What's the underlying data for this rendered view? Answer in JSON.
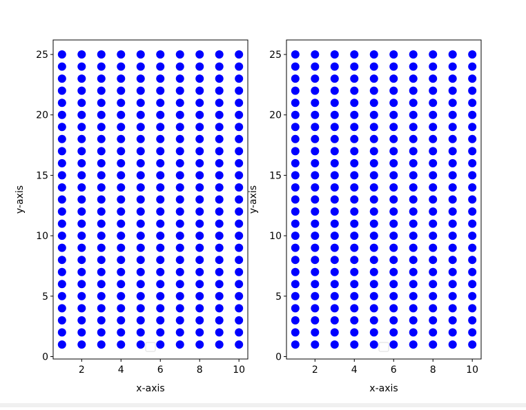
{
  "chart_data": [
    {
      "type": "scatter",
      "xlabel": "x-axis",
      "ylabel": "y-axis",
      "color": "#0000ff",
      "xlim": [
        0.55,
        10.45
      ],
      "ylim": [
        -0.2,
        26.2
      ],
      "xticks": [
        2,
        4,
        6,
        8,
        10
      ],
      "yticks": [
        0,
        5,
        10,
        15,
        20,
        25
      ],
      "x": [
        1,
        1,
        1,
        1,
        1,
        1,
        1,
        1,
        1,
        1,
        1,
        1,
        1,
        1,
        1,
        1,
        1,
        1,
        1,
        1,
        1,
        1,
        1,
        1,
        1,
        2,
        2,
        2,
        2,
        2,
        2,
        2,
        2,
        2,
        2,
        2,
        2,
        2,
        2,
        2,
        2,
        2,
        2,
        2,
        2,
        2,
        2,
        2,
        2,
        2,
        3,
        3,
        3,
        3,
        3,
        3,
        3,
        3,
        3,
        3,
        3,
        3,
        3,
        3,
        3,
        3,
        3,
        3,
        3,
        3,
        3,
        3,
        3,
        3,
        3,
        4,
        4,
        4,
        4,
        4,
        4,
        4,
        4,
        4,
        4,
        4,
        4,
        4,
        4,
        4,
        4,
        4,
        4,
        4,
        4,
        4,
        4,
        4,
        4,
        4,
        5,
        5,
        5,
        5,
        5,
        5,
        5,
        5,
        5,
        5,
        5,
        5,
        5,
        5,
        5,
        5,
        5,
        5,
        5,
        5,
        5,
        5,
        5,
        5,
        5,
        6,
        6,
        6,
        6,
        6,
        6,
        6,
        6,
        6,
        6,
        6,
        6,
        6,
        6,
        6,
        6,
        6,
        6,
        6,
        6,
        6,
        6,
        6,
        6,
        6,
        7,
        7,
        7,
        7,
        7,
        7,
        7,
        7,
        7,
        7,
        7,
        7,
        7,
        7,
        7,
        7,
        7,
        7,
        7,
        7,
        7,
        7,
        7,
        7,
        7,
        8,
        8,
        8,
        8,
        8,
        8,
        8,
        8,
        8,
        8,
        8,
        8,
        8,
        8,
        8,
        8,
        8,
        8,
        8,
        8,
        8,
        8,
        8,
        8,
        8,
        9,
        9,
        9,
        9,
        9,
        9,
        9,
        9,
        9,
        9,
        9,
        9,
        9,
        9,
        9,
        9,
        9,
        9,
        9,
        9,
        9,
        9,
        9,
        9,
        9,
        10,
        10,
        10,
        10,
        10,
        10,
        10,
        10,
        10,
        10,
        10,
        10,
        10,
        10,
        10,
        10,
        10,
        10,
        10,
        10,
        10,
        10,
        10,
        10,
        10
      ],
      "y": [
        1,
        2,
        3,
        4,
        5,
        6,
        7,
        8,
        9,
        10,
        11,
        12,
        13,
        14,
        15,
        16,
        17,
        18,
        19,
        20,
        21,
        22,
        23,
        24,
        25,
        1,
        2,
        3,
        4,
        5,
        6,
        7,
        8,
        9,
        10,
        11,
        12,
        13,
        14,
        15,
        16,
        17,
        18,
        19,
        20,
        21,
        22,
        23,
        24,
        25,
        1,
        2,
        3,
        4,
        5,
        6,
        7,
        8,
        9,
        10,
        11,
        12,
        13,
        14,
        15,
        16,
        17,
        18,
        19,
        20,
        21,
        22,
        23,
        24,
        25,
        1,
        2,
        3,
        4,
        5,
        6,
        7,
        8,
        9,
        10,
        11,
        12,
        13,
        14,
        15,
        16,
        17,
        18,
        19,
        20,
        21,
        22,
        23,
        24,
        25,
        1,
        2,
        3,
        4,
        5,
        6,
        7,
        8,
        9,
        10,
        11,
        12,
        13,
        14,
        15,
        16,
        17,
        18,
        19,
        20,
        21,
        22,
        23,
        24,
        25,
        1,
        2,
        3,
        4,
        5,
        6,
        7,
        8,
        9,
        10,
        11,
        12,
        13,
        14,
        15,
        16,
        17,
        18,
        19,
        20,
        21,
        22,
        23,
        24,
        25,
        1,
        2,
        3,
        4,
        5,
        6,
        7,
        8,
        9,
        10,
        11,
        12,
        13,
        14,
        15,
        16,
        17,
        18,
        19,
        20,
        21,
        22,
        23,
        24,
        25,
        1,
        2,
        3,
        4,
        5,
        6,
        7,
        8,
        9,
        10,
        11,
        12,
        13,
        14,
        15,
        16,
        17,
        18,
        19,
        20,
        21,
        22,
        23,
        24,
        25,
        1,
        2,
        3,
        4,
        5,
        6,
        7,
        8,
        9,
        10,
        11,
        12,
        13,
        14,
        15,
        16,
        17,
        18,
        19,
        20,
        21,
        22,
        23,
        24,
        25,
        1,
        2,
        3,
        4,
        5,
        6,
        7,
        8,
        9,
        10,
        11,
        12,
        13,
        14,
        15,
        16,
        17,
        18,
        19,
        20,
        21,
        22,
        23,
        24,
        25
      ]
    },
    {
      "type": "scatter",
      "xlabel": "x-axis",
      "ylabel": "y-axis",
      "color": "#0000ff",
      "xlim": [
        0.55,
        10.45
      ],
      "ylim": [
        -0.2,
        26.2
      ],
      "xticks": [
        2,
        4,
        6,
        8,
        10
      ],
      "yticks": [
        0,
        5,
        10,
        15,
        20,
        25
      ],
      "x": [
        1,
        1,
        1,
        1,
        1,
        1,
        1,
        1,
        1,
        1,
        1,
        1,
        1,
        1,
        1,
        1,
        1,
        1,
        1,
        1,
        1,
        1,
        1,
        1,
        1,
        2,
        2,
        2,
        2,
        2,
        2,
        2,
        2,
        2,
        2,
        2,
        2,
        2,
        2,
        2,
        2,
        2,
        2,
        2,
        2,
        2,
        2,
        2,
        2,
        2,
        3,
        3,
        3,
        3,
        3,
        3,
        3,
        3,
        3,
        3,
        3,
        3,
        3,
        3,
        3,
        3,
        3,
        3,
        3,
        3,
        3,
        3,
        3,
        3,
        3,
        4,
        4,
        4,
        4,
        4,
        4,
        4,
        4,
        4,
        4,
        4,
        4,
        4,
        4,
        4,
        4,
        4,
        4,
        4,
        4,
        4,
        4,
        4,
        4,
        4,
        5,
        5,
        5,
        5,
        5,
        5,
        5,
        5,
        5,
        5,
        5,
        5,
        5,
        5,
        5,
        5,
        5,
        5,
        5,
        5,
        5,
        5,
        5,
        5,
        5,
        6,
        6,
        6,
        6,
        6,
        6,
        6,
        6,
        6,
        6,
        6,
        6,
        6,
        6,
        6,
        6,
        6,
        6,
        6,
        6,
        6,
        6,
        6,
        6,
        6,
        7,
        7,
        7,
        7,
        7,
        7,
        7,
        7,
        7,
        7,
        7,
        7,
        7,
        7,
        7,
        7,
        7,
        7,
        7,
        7,
        7,
        7,
        7,
        7,
        7,
        8,
        8,
        8,
        8,
        8,
        8,
        8,
        8,
        8,
        8,
        8,
        8,
        8,
        8,
        8,
        8,
        8,
        8,
        8,
        8,
        8,
        8,
        8,
        8,
        8,
        9,
        9,
        9,
        9,
        9,
        9,
        9,
        9,
        9,
        9,
        9,
        9,
        9,
        9,
        9,
        9,
        9,
        9,
        9,
        9,
        9,
        9,
        9,
        9,
        9,
        10,
        10,
        10,
        10,
        10,
        10,
        10,
        10,
        10,
        10,
        10,
        10,
        10,
        10,
        10,
        10,
        10,
        10,
        10,
        10,
        10,
        10,
        10,
        10,
        10
      ],
      "y": [
        1,
        2,
        3,
        4,
        5,
        6,
        7,
        8,
        9,
        10,
        11,
        12,
        13,
        14,
        15,
        16,
        17,
        18,
        19,
        20,
        21,
        22,
        23,
        24,
        25,
        1,
        2,
        3,
        4,
        5,
        6,
        7,
        8,
        9,
        10,
        11,
        12,
        13,
        14,
        15,
        16,
        17,
        18,
        19,
        20,
        21,
        22,
        23,
        24,
        25,
        1,
        2,
        3,
        4,
        5,
        6,
        7,
        8,
        9,
        10,
        11,
        12,
        13,
        14,
        15,
        16,
        17,
        18,
        19,
        20,
        21,
        22,
        23,
        24,
        25,
        1,
        2,
        3,
        4,
        5,
        6,
        7,
        8,
        9,
        10,
        11,
        12,
        13,
        14,
        15,
        16,
        17,
        18,
        19,
        20,
        21,
        22,
        23,
        24,
        25,
        1,
        2,
        3,
        4,
        5,
        6,
        7,
        8,
        9,
        10,
        11,
        12,
        13,
        14,
        15,
        16,
        17,
        18,
        19,
        20,
        21,
        22,
        23,
        24,
        25,
        1,
        2,
        3,
        4,
        5,
        6,
        7,
        8,
        9,
        10,
        11,
        12,
        13,
        14,
        15,
        16,
        17,
        18,
        19,
        20,
        21,
        22,
        23,
        24,
        25,
        1,
        2,
        3,
        4,
        5,
        6,
        7,
        8,
        9,
        10,
        11,
        12,
        13,
        14,
        15,
        16,
        17,
        18,
        19,
        20,
        21,
        22,
        23,
        24,
        25,
        1,
        2,
        3,
        4,
        5,
        6,
        7,
        8,
        9,
        10,
        11,
        12,
        13,
        14,
        15,
        16,
        17,
        18,
        19,
        20,
        21,
        22,
        23,
        24,
        25,
        1,
        2,
        3,
        4,
        5,
        6,
        7,
        8,
        9,
        10,
        11,
        12,
        13,
        14,
        15,
        16,
        17,
        18,
        19,
        20,
        21,
        22,
        23,
        24,
        25,
        1,
        2,
        3,
        4,
        5,
        6,
        7,
        8,
        9,
        10,
        11,
        12,
        13,
        14,
        15,
        16,
        17,
        18,
        19,
        20,
        21,
        22,
        23,
        24,
        25
      ]
    }
  ]
}
